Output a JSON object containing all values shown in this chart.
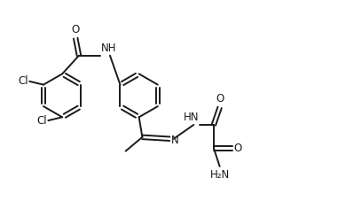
{
  "bg_color": "#ffffff",
  "line_color": "#1a1a1a",
  "line_width": 1.4,
  "figsize": [
    3.81,
    2.27
  ],
  "dpi": 100,
  "xlim": [
    0.0,
    9.5
  ],
  "ylim": [
    0.0,
    6.0
  ],
  "font_size": 8.5
}
